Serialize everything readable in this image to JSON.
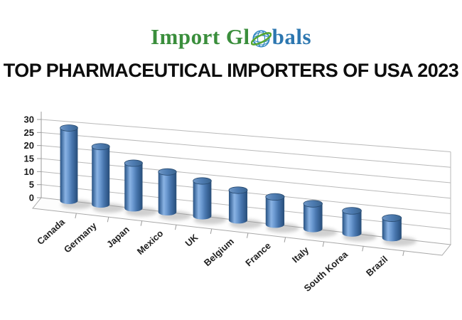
{
  "logo": {
    "part1": "Import Gl",
    "part2": "bals",
    "globe_icon": "globe-icon",
    "green_color": "#3a8e3c",
    "blue_color": "#2d77b0",
    "globe_blue": "#2e86c1",
    "swoosh_green": "#56a632"
  },
  "title": "TOP PHARMACEUTICAL IMPORTERS OF USA 2023",
  "chart_data": {
    "type": "bar",
    "style": "3d-cylinder",
    "title": "TOP PHARMACEUTICAL IMPORTERS OF USA 2023",
    "categories": [
      "Canada",
      "Germany",
      "Japan",
      "Mexico",
      "UK",
      "Belgium",
      "France",
      "Italy",
      "South Korea",
      "Brazil"
    ],
    "values": [
      28,
      22,
      17,
      15,
      13,
      11,
      10,
      9,
      8,
      7
    ],
    "xlabel": "",
    "ylabel": "",
    "ylim": [
      0,
      30
    ],
    "yticks": [
      0,
      5,
      10,
      15,
      20,
      25,
      30
    ],
    "grid": true,
    "legend": "none",
    "bar_color": "#4f81bd",
    "bar_color_dark": "#2d5380",
    "bar_color_light": "#8ab3e4",
    "gridline_color": "#b9b9b9",
    "axis_color": "#9b9b9b",
    "floor_outline_color": "#a9a9a9",
    "shadow_color": "#9a9a9a",
    "label_color": "#1f1f1f"
  }
}
